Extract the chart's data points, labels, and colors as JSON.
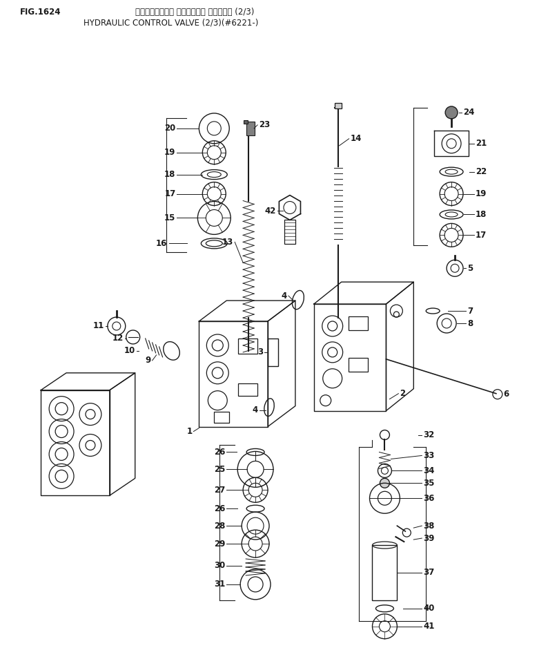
{
  "title_line1": "ハイト゚ロリック コントロール バルプ (2/3)",
  "title_line2": "HYDRAULIC CONTROL VALVE (2/3)(#6221-)",
  "fig_label": "FIG.1624",
  "bg_color": "#ffffff",
  "line_color": "#1a1a1a",
  "fig_width": 7.94,
  "fig_height": 9.38,
  "dpi": 100
}
